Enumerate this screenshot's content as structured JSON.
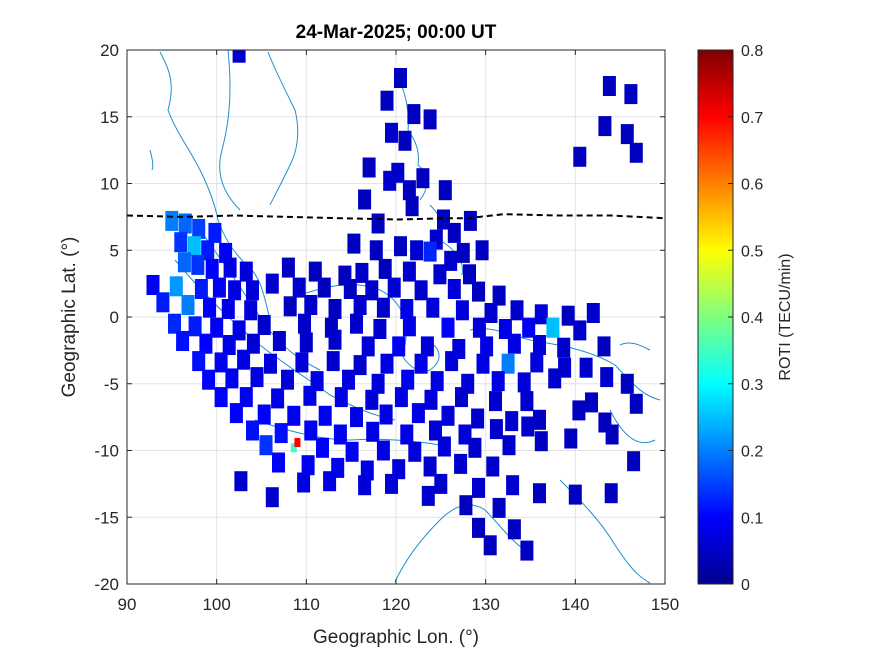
{
  "chart_data": {
    "type": "heatmap",
    "title": "24-Mar-2025; 00:00 UT",
    "xlabel": "Geographic Lon. (°)",
    "ylabel": "Geographic Lat. (°)",
    "xlim": [
      90,
      150
    ],
    "ylim": [
      -20,
      20
    ],
    "xticks": [
      90,
      100,
      110,
      120,
      130,
      140,
      150
    ],
    "yticks": [
      20,
      15,
      10,
      5,
      0,
      -5,
      -10,
      -15,
      -20
    ],
    "grid": true,
    "colorbar": {
      "label": "ROTI (TECU/min)",
      "range": [
        0,
        0.8
      ],
      "ticks": [
        "0.8",
        "0.7",
        "0.6",
        "0.5",
        "0.4",
        "0.3",
        "0.2",
        "0.1",
        "0"
      ],
      "colormap": "jet"
    },
    "cells": [
      [
        102.5,
        19.8,
        0.06
      ],
      [
        120.5,
        17.9,
        0.05
      ],
      [
        143.8,
        17.3,
        0.05
      ],
      [
        146.2,
        16.7,
        0.05
      ],
      [
        119,
        16.2,
        0.05
      ],
      [
        122,
        15.2,
        0.05
      ],
      [
        123.8,
        14.8,
        0.05
      ],
      [
        119.5,
        13.8,
        0.06
      ],
      [
        143.3,
        14.3,
        0.05
      ],
      [
        145.8,
        13.7,
        0.05
      ],
      [
        121,
        13.2,
        0.05
      ],
      [
        146.8,
        12.3,
        0.05
      ],
      [
        140.5,
        12.0,
        0.05
      ],
      [
        117,
        11.2,
        0.05
      ],
      [
        120.2,
        10.8,
        0.06
      ],
      [
        123,
        10.4,
        0.05
      ],
      [
        119.3,
        10.2,
        0.06
      ],
      [
        121.5,
        9.5,
        0.05
      ],
      [
        125.5,
        9.5,
        0.05
      ],
      [
        116.5,
        8.8,
        0.05
      ],
      [
        121.8,
        8.3,
        0.05
      ],
      [
        95,
        7.2,
        0.2
      ],
      [
        96.5,
        7.0,
        0.18
      ],
      [
        98,
        6.6,
        0.15
      ],
      [
        99.8,
        6.3,
        0.12
      ],
      [
        125.3,
        7.3,
        0.05
      ],
      [
        128.3,
        7.2,
        0.05
      ],
      [
        118,
        7.0,
        0.05
      ],
      [
        126.5,
        6.3,
        0.05
      ],
      [
        124.5,
        5.8,
        0.06
      ],
      [
        96,
        5.6,
        0.14
      ],
      [
        97.5,
        5.3,
        0.25
      ],
      [
        99,
        5.0,
        0.12
      ],
      [
        101,
        4.8,
        0.1
      ],
      [
        115.3,
        5.5,
        0.05
      ],
      [
        117.8,
        5.0,
        0.05
      ],
      [
        120.5,
        5.3,
        0.05
      ],
      [
        122.3,
        5.0,
        0.06
      ],
      [
        123.8,
        4.9,
        0.13
      ],
      [
        126.1,
        4.2,
        0.06
      ],
      [
        127.5,
        4.8,
        0.05
      ],
      [
        129.6,
        5.0,
        0.05
      ],
      [
        96.4,
        4.1,
        0.18
      ],
      [
        97.9,
        3.9,
        0.14
      ],
      [
        99.5,
        3.6,
        0.1
      ],
      [
        101.5,
        3.7,
        0.08
      ],
      [
        103.3,
        3.4,
        0.07
      ],
      [
        108,
        3.7,
        0.05
      ],
      [
        111,
        3.4,
        0.05
      ],
      [
        114.3,
        3.1,
        0.05
      ],
      [
        116.2,
        3.3,
        0.06
      ],
      [
        118.8,
        3.6,
        0.05
      ],
      [
        121.5,
        3.4,
        0.06
      ],
      [
        124.9,
        3.2,
        0.06
      ],
      [
        128.2,
        3.2,
        0.05
      ],
      [
        92.9,
        2.4,
        0.09
      ],
      [
        95.5,
        2.3,
        0.22
      ],
      [
        98.3,
        2.1,
        0.12
      ],
      [
        100.3,
        2.2,
        0.09
      ],
      [
        102,
        2.0,
        0.08
      ],
      [
        104,
        2.0,
        0.07
      ],
      [
        106.2,
        2.5,
        0.06
      ],
      [
        109.2,
        2.2,
        0.06
      ],
      [
        112,
        2.2,
        0.05
      ],
      [
        114.9,
        2.1,
        0.05
      ],
      [
        117.3,
        2.0,
        0.06
      ],
      [
        119.8,
        2.2,
        0.07
      ],
      [
        122.8,
        2.0,
        0.06
      ],
      [
        126.5,
        2.1,
        0.07
      ],
      [
        129.2,
        1.9,
        0.05
      ],
      [
        131.5,
        1.6,
        0.05
      ],
      [
        94,
        1.1,
        0.12
      ],
      [
        96.8,
        0.9,
        0.2
      ],
      [
        99.2,
        0.7,
        0.1
      ],
      [
        101.3,
        0.6,
        0.08
      ],
      [
        103.8,
        0.5,
        0.07
      ],
      [
        108.2,
        0.8,
        0.05
      ],
      [
        110.5,
        0.9,
        0.06
      ],
      [
        113.2,
        0.6,
        0.05
      ],
      [
        116,
        0.9,
        0.06
      ],
      [
        118.6,
        0.7,
        0.06
      ],
      [
        121.2,
        0.6,
        0.08
      ],
      [
        124.1,
        0.7,
        0.07
      ],
      [
        127.4,
        0.5,
        0.07
      ],
      [
        130.6,
        0.3,
        0.06
      ],
      [
        133.5,
        0.5,
        0.06
      ],
      [
        136.2,
        0.2,
        0.07
      ],
      [
        139.2,
        0.1,
        0.05
      ],
      [
        142,
        0.3,
        0.06
      ],
      [
        95.3,
        -0.5,
        0.13
      ],
      [
        97.6,
        -0.7,
        0.12
      ],
      [
        100,
        -0.8,
        0.09
      ],
      [
        102.5,
        -1.0,
        0.08
      ],
      [
        105.3,
        -0.6,
        0.06
      ],
      [
        109.8,
        -0.5,
        0.06
      ],
      [
        112.8,
        -0.8,
        0.05
      ],
      [
        115.6,
        -0.5,
        0.06
      ],
      [
        118.2,
        -0.9,
        0.06
      ],
      [
        121.5,
        -0.7,
        0.08
      ],
      [
        125.8,
        -0.8,
        0.1
      ],
      [
        129.3,
        -0.8,
        0.07
      ],
      [
        132.2,
        -0.9,
        0.08
      ],
      [
        134.8,
        -0.8,
        0.09
      ],
      [
        137.5,
        -0.8,
        0.25
      ],
      [
        140.5,
        -1.0,
        0.06
      ],
      [
        96.2,
        -1.8,
        0.11
      ],
      [
        98.8,
        -2.0,
        0.1
      ],
      [
        101.4,
        -2.1,
        0.08
      ],
      [
        104.1,
        -2.0,
        0.07
      ],
      [
        107,
        -1.8,
        0.06
      ],
      [
        110,
        -1.9,
        0.06
      ],
      [
        113.2,
        -1.7,
        0.06
      ],
      [
        116.9,
        -2.2,
        0.07
      ],
      [
        120.3,
        -2.2,
        0.09
      ],
      [
        123.5,
        -2.2,
        0.07
      ],
      [
        127,
        -2.4,
        0.07
      ],
      [
        130.1,
        -2.2,
        0.08
      ],
      [
        133.2,
        -2.0,
        0.08
      ],
      [
        136,
        -2.1,
        0.07
      ],
      [
        138.7,
        -2.3,
        0.06
      ],
      [
        143.2,
        -2.2,
        0.05
      ],
      [
        98,
        -3.3,
        0.11
      ],
      [
        100.5,
        -3.4,
        0.09
      ],
      [
        103,
        -3.2,
        0.08
      ],
      [
        106,
        -3.5,
        0.07
      ],
      [
        109.5,
        -3.4,
        0.07
      ],
      [
        113,
        -3.3,
        0.06
      ],
      [
        116,
        -3.6,
        0.06
      ],
      [
        119,
        -3.5,
        0.08
      ],
      [
        122.8,
        -3.5,
        0.08
      ],
      [
        126.2,
        -3.3,
        0.07
      ],
      [
        129.7,
        -3.5,
        0.08
      ],
      [
        132.5,
        -3.5,
        0.2
      ],
      [
        135.7,
        -3.4,
        0.07
      ],
      [
        138.8,
        -3.8,
        0.06
      ],
      [
        141.2,
        -3.8,
        0.06
      ],
      [
        99.1,
        -4.7,
        0.1
      ],
      [
        101.7,
        -4.6,
        0.09
      ],
      [
        104.5,
        -4.5,
        0.08
      ],
      [
        107.9,
        -4.7,
        0.07
      ],
      [
        111.2,
        -4.8,
        0.08
      ],
      [
        114.7,
        -4.7,
        0.07
      ],
      [
        118,
        -5.0,
        0.07
      ],
      [
        121.3,
        -4.7,
        0.09
      ],
      [
        124.6,
        -4.8,
        0.08
      ],
      [
        128,
        -5.0,
        0.07
      ],
      [
        131.4,
        -4.8,
        0.08
      ],
      [
        134.3,
        -4.9,
        0.07
      ],
      [
        137.7,
        -4.6,
        0.06
      ],
      [
        143.5,
        -4.5,
        0.06
      ],
      [
        145.8,
        -5.0,
        0.05
      ],
      [
        100.5,
        -6.0,
        0.1
      ],
      [
        103.3,
        -6.0,
        0.09
      ],
      [
        106.8,
        -6.1,
        0.08
      ],
      [
        110.4,
        -5.9,
        0.08
      ],
      [
        113.9,
        -6.0,
        0.08
      ],
      [
        117.3,
        -6.2,
        0.07
      ],
      [
        120.6,
        -6.0,
        0.08
      ],
      [
        123.9,
        -6.2,
        0.07
      ],
      [
        127.3,
        -6.0,
        0.06
      ],
      [
        131.1,
        -6.3,
        0.06
      ],
      [
        134.6,
        -6.3,
        0.06
      ],
      [
        141.8,
        -6.4,
        0.05
      ],
      [
        146.8,
        -6.5,
        0.05
      ],
      [
        102.2,
        -7.2,
        0.1
      ],
      [
        105.3,
        -7.3,
        0.1
      ],
      [
        108.6,
        -7.4,
        0.09
      ],
      [
        112.1,
        -7.4,
        0.09
      ],
      [
        115.6,
        -7.5,
        0.08
      ],
      [
        118.9,
        -7.3,
        0.08
      ],
      [
        122.5,
        -7.2,
        0.08
      ],
      [
        125.8,
        -7.4,
        0.07
      ],
      [
        129.1,
        -7.6,
        0.06
      ],
      [
        132.9,
        -7.8,
        0.06
      ],
      [
        136,
        -7.7,
        0.05
      ],
      [
        140.4,
        -7.0,
        0.05
      ],
      [
        143.3,
        -7.9,
        0.05
      ],
      [
        104,
        -8.5,
        0.11
      ],
      [
        107.2,
        -8.7,
        0.11
      ],
      [
        110.5,
        -8.5,
        0.09
      ],
      [
        113.8,
        -8.8,
        0.09
      ],
      [
        117.4,
        -8.6,
        0.08
      ],
      [
        121.2,
        -8.8,
        0.08
      ],
      [
        124.4,
        -8.5,
        0.07
      ],
      [
        127.7,
        -8.8,
        0.07
      ],
      [
        131.2,
        -8.4,
        0.06
      ],
      [
        134.7,
        -8.2,
        0.06
      ],
      [
        144.1,
        -8.8,
        0.05
      ],
      [
        105.5,
        -9.6,
        0.14
      ],
      [
        108.6,
        -9.8,
        0.35
      ],
      [
        109,
        -9.4,
        0.7
      ],
      [
        111.8,
        -9.8,
        0.1
      ],
      [
        115.1,
        -10.1,
        0.09
      ],
      [
        118.6,
        -10.0,
        0.08
      ],
      [
        122.1,
        -10.1,
        0.07
      ],
      [
        125.4,
        -9.7,
        0.07
      ],
      [
        128.8,
        -9.8,
        0.06
      ],
      [
        132.6,
        -9.6,
        0.06
      ],
      [
        136.2,
        -9.3,
        0.05
      ],
      [
        139.5,
        -9.1,
        0.05
      ],
      [
        106.9,
        -10.9,
        0.1
      ],
      [
        110.2,
        -11.1,
        0.09
      ],
      [
        113.5,
        -11.3,
        0.09
      ],
      [
        116.8,
        -11.5,
        0.08
      ],
      [
        120.3,
        -11.4,
        0.07
      ],
      [
        123.8,
        -11.2,
        0.06
      ],
      [
        127.2,
        -11.0,
        0.06
      ],
      [
        130.8,
        -11.2,
        0.06
      ],
      [
        146.5,
        -10.8,
        0.05
      ],
      [
        102.7,
        -12.3,
        0.06
      ],
      [
        109.7,
        -12.4,
        0.08
      ],
      [
        112.6,
        -12.3,
        0.08
      ],
      [
        116.5,
        -12.6,
        0.07
      ],
      [
        119.5,
        -12.5,
        0.07
      ],
      [
        125,
        -12.5,
        0.06
      ],
      [
        129.2,
        -12.8,
        0.06
      ],
      [
        133,
        -12.6,
        0.06
      ],
      [
        106.2,
        -13.5,
        0.06
      ],
      [
        123.6,
        -13.4,
        0.06
      ],
      [
        136,
        -13.2,
        0.05
      ],
      [
        140,
        -13.3,
        0.05
      ],
      [
        144,
        -13.2,
        0.05
      ],
      [
        127.8,
        -14.1,
        0.05
      ],
      [
        131.5,
        -14.3,
        0.05
      ],
      [
        129.2,
        -15.8,
        0.05
      ],
      [
        133.2,
        -15.9,
        0.05
      ],
      [
        130.5,
        -17.1,
        0.05
      ],
      [
        134.6,
        -17.5,
        0.05
      ]
    ],
    "terminator": [
      [
        90,
        7.6
      ],
      [
        96,
        7.5
      ],
      [
        102,
        7.6
      ],
      [
        108,
        7.5
      ],
      [
        114,
        7.4
      ],
      [
        120,
        7.3
      ],
      [
        126,
        7.4
      ],
      [
        128,
        7.4
      ],
      [
        132,
        7.7
      ],
      [
        138,
        7.6
      ],
      [
        144,
        7.6
      ],
      [
        150,
        7.4
      ]
    ]
  }
}
